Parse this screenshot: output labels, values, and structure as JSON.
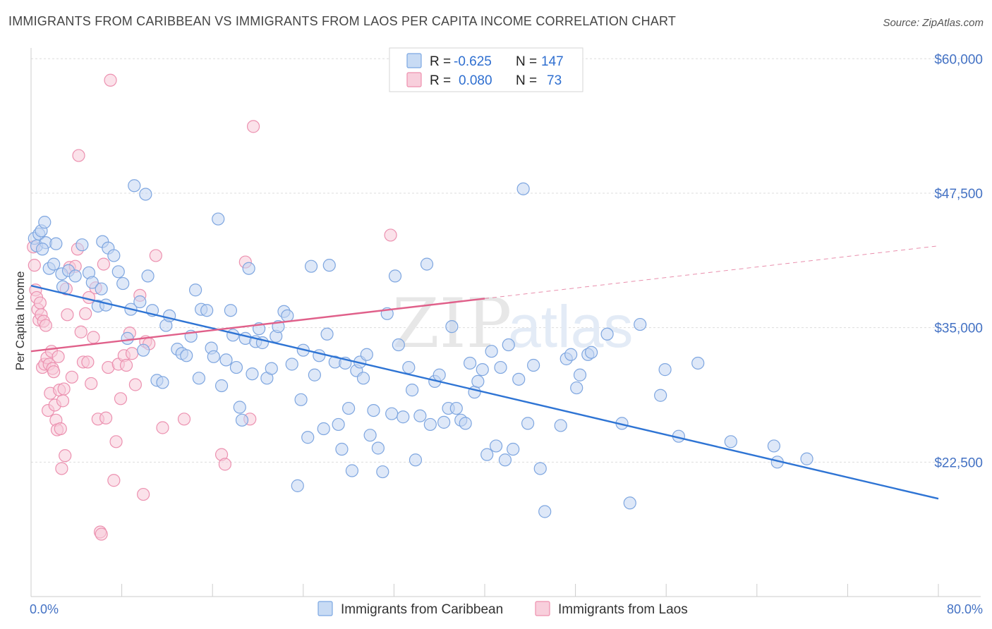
{
  "title": "IMMIGRANTS FROM CARIBBEAN VS IMMIGRANTS FROM LAOS PER CAPITA INCOME CORRELATION CHART",
  "source": "Source: ZipAtlas.com",
  "watermark": {
    "part1": "ZIP",
    "part2": "atlas"
  },
  "legend": {
    "r_label": "R =",
    "n_label": "N =",
    "rows": [
      {
        "r": "-0.625",
        "n": "147",
        "color": "#7ba7e2",
        "fill": "#c8dbf4"
      },
      {
        "r": "0.080",
        "n": "73",
        "color": "#ee90ae",
        "fill": "#f8cfdc"
      }
    ]
  },
  "colors": {
    "blue": "#2e74d4",
    "blue_dot_fill": "#c2d6f2",
    "blue_dot_stroke": "#7ea6e0",
    "pink": "#e0608a",
    "pink_dot_fill": "#f7cbd9",
    "pink_dot_stroke": "#ec91b0",
    "axis_label": "#4472c4",
    "grid": "#dddddd"
  },
  "chart_data": {
    "type": "scatter",
    "title": "IMMIGRANTS FROM CARIBBEAN VS IMMIGRANTS FROM LAOS PER CAPITA INCOME CORRELATION CHART",
    "xlabel": "",
    "ylabel": "Per Capita Income",
    "xlim": [
      0,
      80
    ],
    "ylim": [
      10000,
      61000
    ],
    "x_tick_labels": [
      "0.0%",
      "80.0%"
    ],
    "y_ticks": [
      22500,
      35000,
      47500,
      60000
    ],
    "y_tick_labels": [
      "$22,500",
      "$35,000",
      "$47,500",
      "$60,000"
    ],
    "grid": true,
    "legend_position": "top-center",
    "series": [
      {
        "name": "Immigrants from Caribbean",
        "r": -0.625,
        "n": 147,
        "trend": {
          "x": [
            0,
            80
          ],
          "y": [
            38900,
            19100
          ]
        },
        "points": [
          [
            0.3,
            43300
          ],
          [
            0.5,
            42600
          ],
          [
            0.7,
            43700
          ],
          [
            0.9,
            44000
          ],
          [
            1.2,
            44800
          ],
          [
            1.3,
            42900
          ],
          [
            1.6,
            40500
          ],
          [
            2.2,
            42800
          ],
          [
            2.7,
            40000
          ],
          [
            2.8,
            38800
          ],
          [
            3.3,
            40300
          ],
          [
            3.9,
            39800
          ],
          [
            4.5,
            42700
          ],
          [
            5.1,
            40100
          ],
          [
            5.4,
            39200
          ],
          [
            5.9,
            37000
          ],
          [
            6.2,
            38600
          ],
          [
            6.6,
            37100
          ],
          [
            6.3,
            43000
          ],
          [
            6.8,
            42400
          ],
          [
            7.3,
            41700
          ],
          [
            7.7,
            40200
          ],
          [
            8.1,
            39100
          ],
          [
            8.5,
            34000
          ],
          [
            8.8,
            36700
          ],
          [
            9.1,
            48200
          ],
          [
            9.6,
            37400
          ],
          [
            9.9,
            32900
          ],
          [
            10.3,
            39800
          ],
          [
            10.1,
            47400
          ],
          [
            10.7,
            36600
          ],
          [
            11.1,
            30100
          ],
          [
            11.6,
            29900
          ],
          [
            11.9,
            35200
          ],
          [
            12.2,
            36100
          ],
          [
            12.9,
            33000
          ],
          [
            13.3,
            32600
          ],
          [
            13.7,
            32400
          ],
          [
            14.1,
            34200
          ],
          [
            14.5,
            38500
          ],
          [
            14.8,
            30300
          ],
          [
            15.0,
            36700
          ],
          [
            15.5,
            36600
          ],
          [
            15.9,
            33100
          ],
          [
            16.1,
            32300
          ],
          [
            16.5,
            45100
          ],
          [
            16.8,
            29600
          ],
          [
            17.2,
            32000
          ],
          [
            17.6,
            36600
          ],
          [
            17.8,
            34300
          ],
          [
            18.1,
            31300
          ],
          [
            18.4,
            27600
          ],
          [
            18.6,
            26400
          ],
          [
            18.9,
            34000
          ],
          [
            19.2,
            40500
          ],
          [
            19.5,
            30700
          ],
          [
            19.8,
            33700
          ],
          [
            20.1,
            34900
          ],
          [
            20.4,
            33600
          ],
          [
            20.8,
            30300
          ],
          [
            21.2,
            31200
          ],
          [
            21.6,
            34200
          ],
          [
            21.8,
            35100
          ],
          [
            22.3,
            36500
          ],
          [
            22.6,
            36100
          ],
          [
            23.0,
            31600
          ],
          [
            23.5,
            20300
          ],
          [
            23.8,
            28300
          ],
          [
            24.0,
            32900
          ],
          [
            24.4,
            24800
          ],
          [
            24.7,
            40700
          ],
          [
            25.0,
            30600
          ],
          [
            25.4,
            32400
          ],
          [
            25.8,
            25600
          ],
          [
            26.1,
            34400
          ],
          [
            26.3,
            40800
          ],
          [
            26.8,
            31800
          ],
          [
            27.1,
            26000
          ],
          [
            27.4,
            23700
          ],
          [
            27.7,
            31700
          ],
          [
            28.0,
            27500
          ],
          [
            28.3,
            21700
          ],
          [
            28.7,
            31000
          ],
          [
            29.0,
            31800
          ],
          [
            29.3,
            30300
          ],
          [
            29.6,
            32500
          ],
          [
            29.9,
            25000
          ],
          [
            30.2,
            27300
          ],
          [
            30.6,
            23800
          ],
          [
            31.0,
            21600
          ],
          [
            31.4,
            36300
          ],
          [
            31.8,
            27000
          ],
          [
            32.1,
            39800
          ],
          [
            32.4,
            33400
          ],
          [
            32.8,
            26700
          ],
          [
            33.3,
            31300
          ],
          [
            33.6,
            29200
          ],
          [
            33.9,
            22700
          ],
          [
            34.3,
            26800
          ],
          [
            34.9,
            40900
          ],
          [
            35.2,
            26000
          ],
          [
            35.6,
            30000
          ],
          [
            36.0,
            30600
          ],
          [
            36.4,
            26200
          ],
          [
            36.8,
            27500
          ],
          [
            37.1,
            35100
          ],
          [
            37.5,
            27500
          ],
          [
            37.9,
            26400
          ],
          [
            38.3,
            26100
          ],
          [
            38.7,
            31700
          ],
          [
            39.1,
            29000
          ],
          [
            39.4,
            30000
          ],
          [
            39.8,
            31100
          ],
          [
            40.2,
            23200
          ],
          [
            40.6,
            32800
          ],
          [
            41.0,
            24000
          ],
          [
            41.4,
            31300
          ],
          [
            41.8,
            22700
          ],
          [
            42.1,
            33400
          ],
          [
            42.5,
            23700
          ],
          [
            43.0,
            30200
          ],
          [
            43.4,
            47900
          ],
          [
            43.8,
            26100
          ],
          [
            44.3,
            31500
          ],
          [
            44.9,
            21900
          ],
          [
            45.3,
            17900
          ],
          [
            46.7,
            25900
          ],
          [
            47.2,
            32100
          ],
          [
            47.6,
            32500
          ],
          [
            48.1,
            29400
          ],
          [
            48.4,
            30600
          ],
          [
            49.1,
            32500
          ],
          [
            49.4,
            32700
          ],
          [
            50.8,
            34400
          ],
          [
            52.1,
            26100
          ],
          [
            52.8,
            18700
          ],
          [
            53.7,
            35300
          ],
          [
            55.5,
            28700
          ],
          [
            55.9,
            31100
          ],
          [
            57.1,
            24900
          ],
          [
            58.8,
            31700
          ],
          [
            61.7,
            24400
          ],
          [
            65.5,
            24000
          ],
          [
            65.8,
            22500
          ],
          [
            68.4,
            22800
          ],
          [
            1.0,
            42300
          ],
          [
            2.0,
            40900
          ]
        ]
      },
      {
        "name": "Immigrants from Laos",
        "r": 0.08,
        "n": 73,
        "trend": {
          "x": [
            0,
            40
          ],
          "y": [
            32800,
            37700
          ]
        },
        "trend_dashed": {
          "x": [
            40,
            80
          ],
          "y": [
            37700,
            42600
          ]
        },
        "points": [
          [
            0.2,
            42500
          ],
          [
            0.3,
            40800
          ],
          [
            0.4,
            38500
          ],
          [
            0.5,
            37800
          ],
          [
            0.6,
            36700
          ],
          [
            0.7,
            35700
          ],
          [
            0.8,
            37300
          ],
          [
            0.9,
            36200
          ],
          [
            1.0,
            31300
          ],
          [
            1.1,
            35600
          ],
          [
            1.2,
            31600
          ],
          [
            1.3,
            35200
          ],
          [
            1.4,
            32200
          ],
          [
            1.5,
            27300
          ],
          [
            1.6,
            31600
          ],
          [
            1.7,
            28900
          ],
          [
            1.8,
            32800
          ],
          [
            1.9,
            31200
          ],
          [
            2.0,
            30900
          ],
          [
            2.1,
            27800
          ],
          [
            2.2,
            26400
          ],
          [
            2.3,
            25500
          ],
          [
            2.4,
            32300
          ],
          [
            2.5,
            29200
          ],
          [
            2.6,
            25600
          ],
          [
            2.7,
            21900
          ],
          [
            2.8,
            28200
          ],
          [
            2.9,
            29300
          ],
          [
            3.0,
            23100
          ],
          [
            3.1,
            38600
          ],
          [
            3.2,
            36200
          ],
          [
            3.4,
            40600
          ],
          [
            3.6,
            30400
          ],
          [
            3.9,
            40700
          ],
          [
            4.1,
            42300
          ],
          [
            4.2,
            51000
          ],
          [
            4.4,
            34600
          ],
          [
            4.6,
            31800
          ],
          [
            4.8,
            36300
          ],
          [
            5.0,
            31800
          ],
          [
            5.1,
            37800
          ],
          [
            5.3,
            29800
          ],
          [
            5.5,
            34100
          ],
          [
            5.7,
            38700
          ],
          [
            5.9,
            26500
          ],
          [
            6.1,
            16000
          ],
          [
            6.2,
            15800
          ],
          [
            6.4,
            40900
          ],
          [
            6.6,
            26600
          ],
          [
            6.8,
            31300
          ],
          [
            7.0,
            58000
          ],
          [
            7.3,
            20800
          ],
          [
            7.5,
            24400
          ],
          [
            7.7,
            31600
          ],
          [
            7.9,
            28400
          ],
          [
            8.2,
            32400
          ],
          [
            8.4,
            31500
          ],
          [
            8.7,
            34500
          ],
          [
            8.9,
            32600
          ],
          [
            9.2,
            29700
          ],
          [
            9.6,
            38000
          ],
          [
            9.9,
            19500
          ],
          [
            10.1,
            33700
          ],
          [
            10.4,
            33500
          ],
          [
            11.0,
            41700
          ],
          [
            11.6,
            25700
          ],
          [
            13.5,
            26500
          ],
          [
            16.8,
            23200
          ],
          [
            17.1,
            22300
          ],
          [
            18.9,
            41100
          ],
          [
            19.3,
            26500
          ],
          [
            19.6,
            53700
          ],
          [
            31.7,
            43600
          ]
        ]
      }
    ]
  },
  "bottom_legend": [
    {
      "label": "Immigrants from Caribbean"
    },
    {
      "label": "Immigrants from Laos"
    }
  ]
}
